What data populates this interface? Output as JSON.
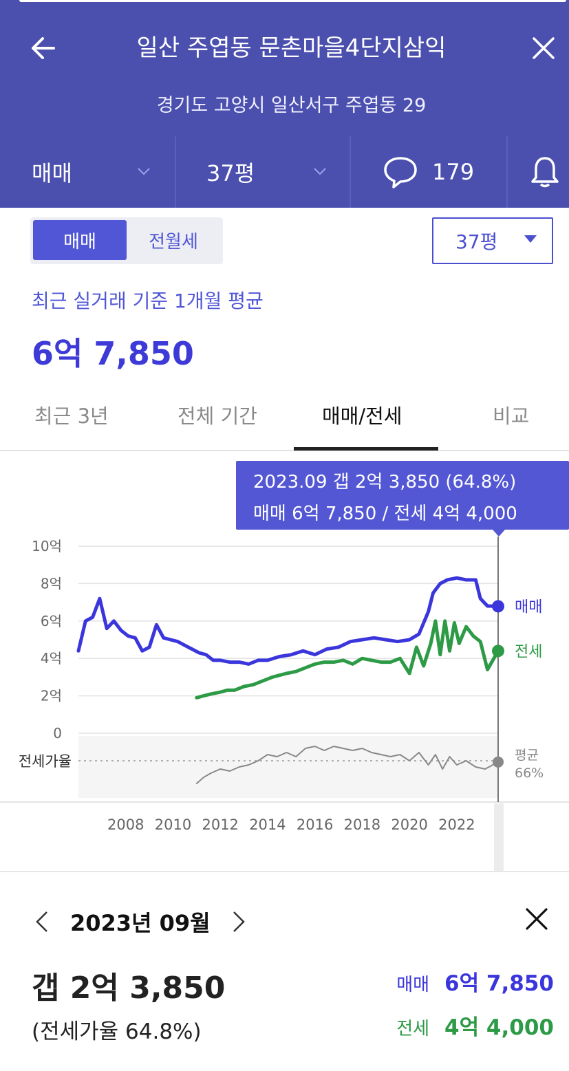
{
  "header": {
    "title": "일산 주엽동 문촌마을4단지삼익",
    "address": "경기도 고양시 일산서구 주엽동 29"
  },
  "filterbar": {
    "trade_type": "매매",
    "size": "37평",
    "comment_count": "179"
  },
  "toggle": {
    "on": "매매",
    "off": "전월세"
  },
  "size_select": "37평",
  "average": {
    "label": "최근 실거래 기준 1개월 평균",
    "value": "6억 7,850"
  },
  "tabs": [
    {
      "label": "최근 3년",
      "active": false
    },
    {
      "label": "전체 기간",
      "active": false
    },
    {
      "label": "매매/전세",
      "active": true
    },
    {
      "label": "비교",
      "active": false
    }
  ],
  "tooltip": {
    "line1": "2023.09  갭 2억 3,850 (64.8%)",
    "line2": "매매 6억 7,850 / 전세 4억 4,000"
  },
  "chart_data": {
    "type": "line",
    "y_tick_labels": [
      "10억",
      "8억",
      "6억",
      "4억",
      "2억",
      "0"
    ],
    "ylim": [
      0,
      10
    ],
    "x_tick_labels": [
      "2008",
      "2010",
      "2012",
      "2014",
      "2016",
      "2018",
      "2020",
      "2022"
    ],
    "xlim": [
      2006,
      2023.75
    ],
    "series": [
      {
        "name": "매매",
        "color": "#3a36dc",
        "x": [
          2006.0,
          2006.3,
          2006.6,
          2006.9,
          2007.2,
          2007.5,
          2007.8,
          2008.1,
          2008.4,
          2008.7,
          2009.0,
          2009.3,
          2009.6,
          2009.9,
          2010.2,
          2010.5,
          2010.8,
          2011.1,
          2011.4,
          2011.7,
          2012.0,
          2012.4,
          2012.8,
          2013.2,
          2013.6,
          2014.0,
          2014.5,
          2015.0,
          2015.5,
          2016.0,
          2016.5,
          2017.0,
          2017.5,
          2018.0,
          2018.5,
          2019.0,
          2019.5,
          2020.0,
          2020.4,
          2020.8,
          2021.0,
          2021.3,
          2021.6,
          2022.0,
          2022.4,
          2022.8,
          2023.0,
          2023.3,
          2023.75
        ],
        "values": [
          4.4,
          6.0,
          6.2,
          7.2,
          5.6,
          6.0,
          5.5,
          5.2,
          5.1,
          4.4,
          4.6,
          5.8,
          5.1,
          5.0,
          4.9,
          4.7,
          4.5,
          4.3,
          4.2,
          3.9,
          3.9,
          3.8,
          3.8,
          3.7,
          3.9,
          3.9,
          4.1,
          4.2,
          4.4,
          4.2,
          4.5,
          4.6,
          4.9,
          5.0,
          5.1,
          5.0,
          4.9,
          5.0,
          5.3,
          6.5,
          7.5,
          8.0,
          8.2,
          8.3,
          8.2,
          8.2,
          7.2,
          6.8,
          6.785
        ]
      },
      {
        "name": "전세",
        "color": "#2d9a46",
        "x": [
          2011.0,
          2011.3,
          2011.6,
          2012.0,
          2012.3,
          2012.6,
          2013.0,
          2013.4,
          2013.8,
          2014.2,
          2014.5,
          2014.8,
          2015.2,
          2015.6,
          2016.0,
          2016.4,
          2016.8,
          2017.2,
          2017.6,
          2018.0,
          2018.4,
          2018.8,
          2019.2,
          2019.6,
          2020.0,
          2020.3,
          2020.6,
          2020.9,
          2021.1,
          2021.3,
          2021.5,
          2021.7,
          2021.9,
          2022.1,
          2022.4,
          2022.7,
          2023.0,
          2023.3,
          2023.75
        ],
        "values": [
          1.9,
          2.0,
          2.1,
          2.2,
          2.3,
          2.3,
          2.5,
          2.6,
          2.8,
          3.0,
          3.1,
          3.2,
          3.3,
          3.5,
          3.7,
          3.8,
          3.8,
          3.9,
          3.7,
          4.0,
          3.9,
          3.8,
          3.8,
          4.0,
          3.2,
          4.6,
          3.6,
          4.8,
          6.0,
          4.2,
          6.0,
          4.4,
          5.9,
          4.8,
          5.7,
          5.2,
          4.9,
          3.4,
          4.4
        ]
      }
    ],
    "jeonse_ratio": {
      "label": "전세가율",
      "avg_label": "평균",
      "avg_value": "66%",
      "x": [
        2011.0,
        2011.3,
        2011.6,
        2012.0,
        2012.4,
        2012.8,
        2013.2,
        2013.6,
        2014.0,
        2014.4,
        2014.8,
        2015.2,
        2015.6,
        2016.0,
        2016.4,
        2016.8,
        2017.2,
        2017.6,
        2018.0,
        2018.4,
        2018.8,
        2019.2,
        2019.6,
        2020.0,
        2020.4,
        2020.8,
        2021.1,
        2021.4,
        2021.7,
        2022.0,
        2022.4,
        2022.8,
        2023.2,
        2023.75
      ],
      "values": [
        44,
        50,
        54,
        58,
        56,
        60,
        62,
        66,
        72,
        70,
        74,
        70,
        78,
        80,
        76,
        80,
        78,
        76,
        78,
        74,
        72,
        70,
        72,
        66,
        74,
        62,
        72,
        58,
        70,
        62,
        66,
        60,
        58,
        64.8
      ]
    },
    "markers": {
      "매매": "6억 7,850",
      "전세": "4억 4,000"
    }
  },
  "detail": {
    "date": "2023년 09월",
    "gap": "갭 2억 3,850",
    "ratio": "(전세가율 64.8%)",
    "sale_label": "매매",
    "sale_value": "6억 7,850",
    "jeonse_label": "전세",
    "jeonse_value": "4억 4,000"
  },
  "colors": {
    "header_bg": "#4b4fae",
    "accent": "#5056d6",
    "sale": "#3a36dc",
    "jeonse": "#2d9a46",
    "ratio": "#888888"
  },
  "icons": [
    "arrow-left-icon",
    "close-icon",
    "chevron-down-icon",
    "speech-bubble-icon",
    "bell-icon",
    "chevron-left-icon",
    "chevron-right-icon",
    "caret-down-icon"
  ]
}
